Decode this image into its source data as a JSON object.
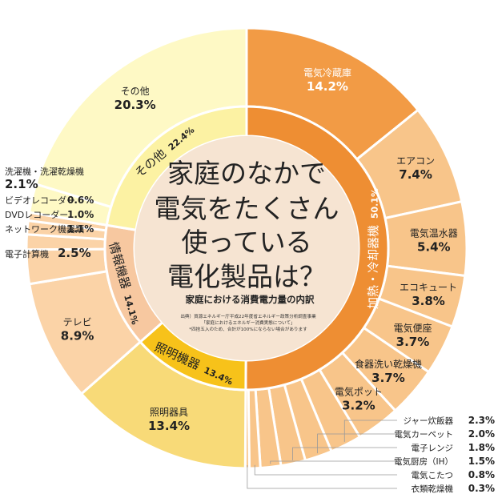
{
  "chart_data": {
    "type": "pie",
    "title_lines": [
      "家庭のなかで",
      "電気をたくさん",
      "使っている",
      "電化製品は？"
    ],
    "subtitle": "家庭における消費電力量の内訳",
    "source_lines": [
      "出典）資源エネルギー庁平成22年度省エネルギー政策分析調査事業",
      "「家庭におけるエネルギー消費実態について」",
      "*四捨五入のため、合計が100%にならない場合があります"
    ],
    "colors": {
      "heat_outer": "#F8C58A",
      "heat_outer_big": "#F29B45",
      "heat_inner": "#EE8E33",
      "light_outer": "#F8DA78",
      "light_inner": "#F7C21A",
      "info_outer": "#FBD3A7",
      "info_inner": "#F7C8A0",
      "other_outer": "#FEF9C5",
      "other_inner": "#FCF2A3",
      "center": "#F6E4D2"
    },
    "inner": [
      {
        "name": "加熱・冷却器機",
        "value": 50.1,
        "value_label": "50.1%",
        "group": "heat"
      },
      {
        "name": "照明機器",
        "value": 13.4,
        "value_label": "13.4%",
        "group": "light"
      },
      {
        "name": "情報機器",
        "value": 14.1,
        "value_label": "14.1%",
        "group": "info"
      },
      {
        "name": "その他",
        "value": 22.4,
        "value_label": "22.4%",
        "group": "other"
      }
    ],
    "outer": [
      {
        "name": "電気冷蔵庫",
        "value": 14.2,
        "value_label": "14.2%",
        "group": "heat"
      },
      {
        "name": "エアコン",
        "value": 7.4,
        "value_label": "7.4%",
        "group": "heat"
      },
      {
        "name": "電気温水器",
        "value": 5.4,
        "value_label": "5.4%",
        "group": "heat"
      },
      {
        "name": "エコキュート",
        "value": 3.8,
        "value_label": "3.8%",
        "group": "heat"
      },
      {
        "name": "電気便座",
        "value": 3.7,
        "value_label": "3.7%",
        "group": "heat"
      },
      {
        "name": "食器洗い乾燥機",
        "value": 3.7,
        "value_label": "3.7%",
        "group": "heat"
      },
      {
        "name": "電気ポット",
        "value": 3.2,
        "value_label": "3.2%",
        "group": "heat"
      },
      {
        "name": "ジャー炊飯器",
        "value": 2.3,
        "value_label": "2.3%",
        "group": "heat"
      },
      {
        "name": "電気カーペット",
        "value": 2.0,
        "value_label": "2.0%",
        "group": "heat"
      },
      {
        "name": "電子レンジ",
        "value": 1.8,
        "value_label": "1.8%",
        "group": "heat"
      },
      {
        "name": "電気厨房（IH）",
        "value": 1.5,
        "value_label": "1.5%",
        "group": "heat"
      },
      {
        "name": "電気こたつ",
        "value": 0.8,
        "value_label": "0.8%",
        "group": "heat"
      },
      {
        "name": "衣類乾燥機",
        "value": 0.3,
        "value_label": "0.3%",
        "group": "heat"
      },
      {
        "name": "照明器具",
        "value": 13.4,
        "value_label": "13.4%",
        "group": "light"
      },
      {
        "name": "テレビ",
        "value": 8.9,
        "value_label": "8.9%",
        "group": "info"
      },
      {
        "name": "電子計算機",
        "value": 2.5,
        "value_label": "2.5%",
        "group": "info"
      },
      {
        "name": "ネットワーク機器類",
        "value": 1.1,
        "value_label": "1.1%",
        "group": "info"
      },
      {
        "name": "DVDレコーダー",
        "value": 1.0,
        "value_label": "1.0%",
        "group": "info"
      },
      {
        "name": "ビデオレコーダー",
        "value": 0.6,
        "value_label": "0.6%",
        "group": "info"
      },
      {
        "name": "洗濯機・洗濯乾燥機",
        "value": 2.1,
        "value_label": "2.1%",
        "group": "other"
      },
      {
        "name": "その他",
        "value": 20.3,
        "value_label": "20.3%",
        "group": "other"
      }
    ]
  }
}
